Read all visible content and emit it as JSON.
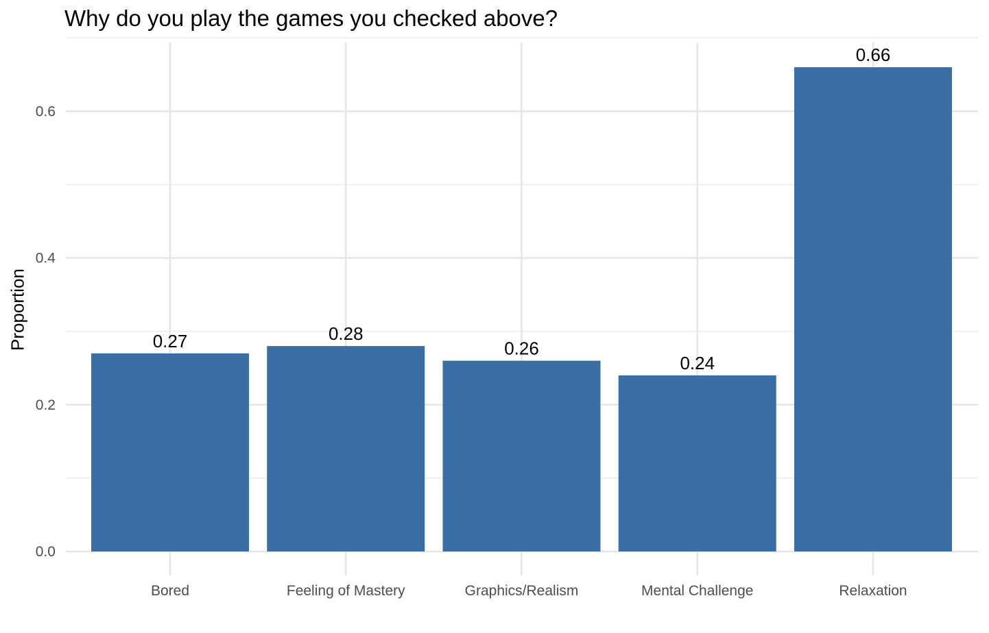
{
  "chart_data": {
    "type": "bar",
    "title": "Why do you play the games you checked above?",
    "xlabel": "",
    "ylabel": "Proportion",
    "categories": [
      "Bored",
      "Feeling of Mastery",
      "Graphics/Realism",
      "Mental Challenge",
      "Relaxation"
    ],
    "values": [
      0.27,
      0.28,
      0.26,
      0.24,
      0.66
    ],
    "data_labels": [
      "0.27",
      "0.28",
      "0.26",
      "0.24",
      "0.66"
    ],
    "ylim": [
      0,
      0.66
    ],
    "y_ticks": [
      0.0,
      0.2,
      0.4,
      0.6
    ],
    "y_tick_labels": [
      "0.0",
      "0.2",
      "0.4",
      "0.6"
    ],
    "grid": true,
    "legend": "none",
    "colors": {
      "bar": "#3a6ea5",
      "grid": "#e6e6e6"
    }
  }
}
